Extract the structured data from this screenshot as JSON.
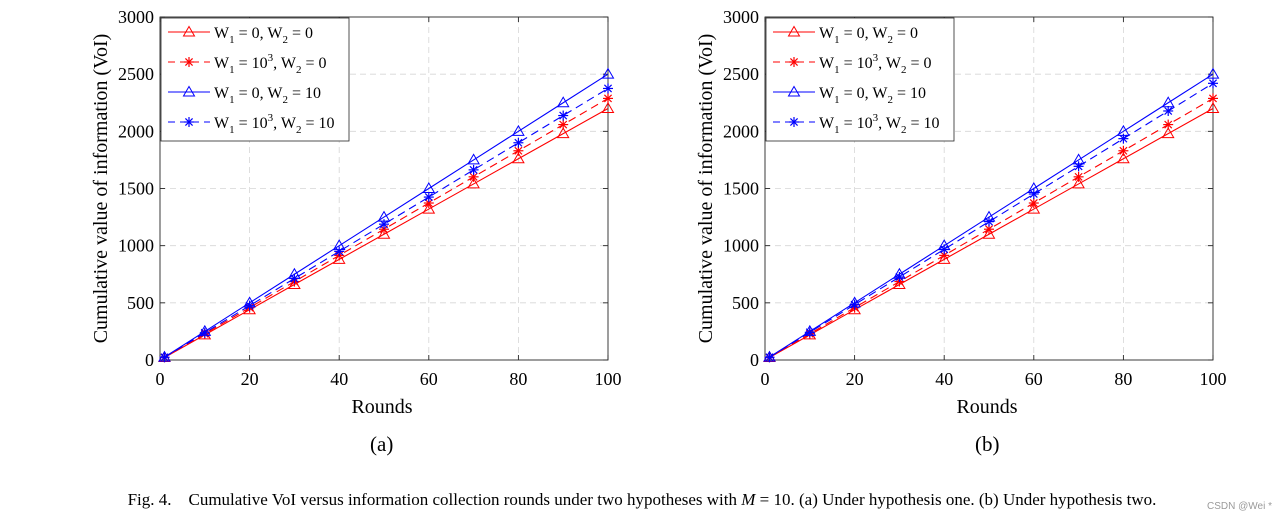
{
  "chart_data": [
    {
      "type": "line",
      "panel": "(a)",
      "xlabel": "Rounds",
      "ylabel": "Cumulative value of information (VoI)",
      "xlim": [
        0,
        100
      ],
      "ylim": [
        0,
        3000
      ],
      "xticks": [
        0,
        20,
        40,
        60,
        80,
        100
      ],
      "yticks": [
        0,
        500,
        1000,
        1500,
        2000,
        2500,
        3000
      ],
      "grid": true,
      "legend_position": "top-left",
      "x": [
        1,
        10,
        20,
        30,
        40,
        50,
        60,
        70,
        80,
        90,
        100
      ],
      "series": [
        {
          "name": "W1 = 0, W2 = 0",
          "legend": {
            "w1": "0,",
            "w1exp": "",
            "w2": "0"
          },
          "color": "#ff0000",
          "dashed": false,
          "marker": "triangle",
          "values": [
            22,
            220,
            440,
            660,
            880,
            1100,
            1320,
            1540,
            1760,
            1980,
            2200
          ]
        },
        {
          "name": "W1 = 10^3, W2 = 0",
          "legend": {
            "w1": "10",
            "w1exp": "3",
            "w2": "0"
          },
          "color": "#ff0000",
          "dashed": true,
          "marker": "asterisk",
          "values": [
            23,
            229,
            458,
            686,
            915,
            1144,
            1373,
            1602,
            1830,
            2059,
            2288
          ]
        },
        {
          "name": "W1 = 0, W2 = 10",
          "legend": {
            "w1": "0,",
            "w1exp": "",
            "w2": "10"
          },
          "color": "#0000ff",
          "dashed": false,
          "marker": "triangle",
          "values": [
            25,
            250,
            500,
            750,
            1000,
            1250,
            1500,
            1750,
            2000,
            2250,
            2500
          ]
        },
        {
          "name": "W1 = 10^3, W2 = 10",
          "legend": {
            "w1": "10",
            "w1exp": "3",
            "w2": "10"
          },
          "color": "#0000ff",
          "dashed": true,
          "marker": "asterisk",
          "values": [
            24,
            238,
            475,
            713,
            950,
            1188,
            1425,
            1663,
            1900,
            2138,
            2375
          ]
        }
      ]
    },
    {
      "type": "line",
      "panel": "(b)",
      "xlabel": "Rounds",
      "ylabel": "Cumulative value of information (VoI)",
      "xlim": [
        0,
        100
      ],
      "ylim": [
        0,
        3000
      ],
      "xticks": [
        0,
        20,
        40,
        60,
        80,
        100
      ],
      "yticks": [
        0,
        500,
        1000,
        1500,
        2000,
        2500,
        3000
      ],
      "grid": true,
      "legend_position": "top-left",
      "x": [
        1,
        10,
        20,
        30,
        40,
        50,
        60,
        70,
        80,
        90,
        100
      ],
      "series": [
        {
          "name": "W1 = 0, W2 = 0",
          "legend": {
            "w1": "0,",
            "w1exp": "",
            "w2": "0"
          },
          "color": "#ff0000",
          "dashed": false,
          "marker": "triangle",
          "values": [
            22,
            220,
            440,
            660,
            880,
            1100,
            1320,
            1540,
            1760,
            1980,
            2200
          ]
        },
        {
          "name": "W1 = 10^3, W2 = 0",
          "legend": {
            "w1": "10",
            "w1exp": "3",
            "w2": "0"
          },
          "color": "#ff0000",
          "dashed": true,
          "marker": "asterisk",
          "values": [
            23,
            229,
            458,
            686,
            915,
            1144,
            1373,
            1602,
            1830,
            2059,
            2288
          ]
        },
        {
          "name": "W1 = 0, W2 = 10",
          "legend": {
            "w1": "0,",
            "w1exp": "",
            "w2": "10"
          },
          "color": "#0000ff",
          "dashed": false,
          "marker": "triangle",
          "values": [
            25,
            250,
            500,
            750,
            1000,
            1250,
            1500,
            1750,
            2000,
            2250,
            2500
          ]
        },
        {
          "name": "W1 = 10^3, W2 = 10",
          "legend": {
            "w1": "10",
            "w1exp": "3",
            "w2": "10"
          },
          "color": "#0000ff",
          "dashed": true,
          "marker": "asterisk",
          "values": [
            24,
            242,
            484,
            726,
            968,
            1210,
            1452,
            1694,
            1936,
            2178,
            2420
          ]
        }
      ]
    }
  ],
  "caption": {
    "fig": "Fig. 4.",
    "text_before": "Cumulative VoI versus information collection rounds under two hypotheses with",
    "var": "M",
    "text_after": "= 10. (a) Under hypothesis one. (b) Under hypothesis two."
  },
  "watermark": "CSDN @Wei *"
}
